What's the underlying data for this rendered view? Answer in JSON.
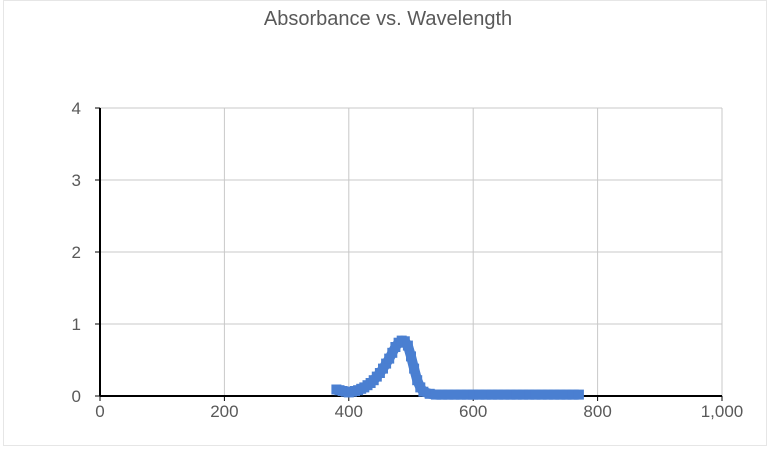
{
  "chart_data": {
    "type": "scatter",
    "title": "Absorbance vs. Wavelength",
    "xlabel": "",
    "ylabel": "",
    "xlim": [
      0,
      1000
    ],
    "ylim": [
      0,
      4
    ],
    "xticks": [
      "0",
      "200",
      "400",
      "600",
      "800",
      "1,000"
    ],
    "yticks": [
      "0",
      "1",
      "2",
      "3",
      "4"
    ],
    "xtick_values": [
      0,
      200,
      400,
      600,
      800,
      1000
    ],
    "ytick_values": [
      0,
      1,
      2,
      3,
      4
    ],
    "grid": true,
    "legend": "none",
    "series_color": "#4a7fd1",
    "series": [
      {
        "x": [
          380,
          385,
          390,
          395,
          400,
          405,
          410,
          415,
          420,
          425,
          430,
          435,
          440,
          445,
          450,
          455,
          460,
          465,
          470,
          475,
          480,
          485,
          490,
          495,
          500,
          505,
          510,
          515,
          520,
          530,
          540,
          550,
          560,
          570,
          580,
          590,
          600,
          610,
          620,
          630,
          640,
          650,
          660,
          670,
          680,
          690,
          700,
          710,
          720,
          730,
          740,
          750,
          760,
          770
        ],
        "y": [
          0.09,
          0.08,
          0.07,
          0.06,
          0.05,
          0.06,
          0.07,
          0.08,
          0.1,
          0.12,
          0.15,
          0.18,
          0.22,
          0.27,
          0.32,
          0.38,
          0.45,
          0.52,
          0.6,
          0.68,
          0.74,
          0.77,
          0.76,
          0.7,
          0.55,
          0.38,
          0.22,
          0.12,
          0.06,
          0.03,
          0.02,
          0.02,
          0.02,
          0.02,
          0.02,
          0.02,
          0.02,
          0.02,
          0.02,
          0.02,
          0.02,
          0.02,
          0.02,
          0.02,
          0.02,
          0.02,
          0.02,
          0.02,
          0.02,
          0.02,
          0.02,
          0.02,
          0.02,
          0.02
        ]
      }
    ]
  }
}
